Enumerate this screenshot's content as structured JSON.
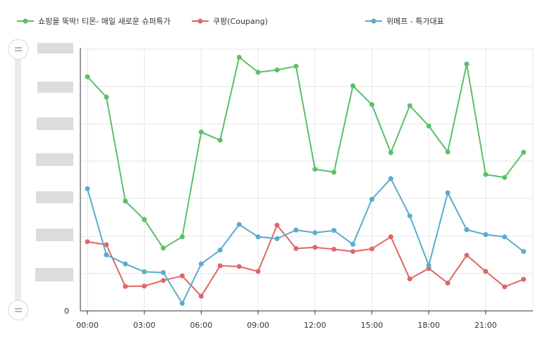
{
  "chart_data": {
    "type": "line",
    "x": [
      "00:00",
      "01:00",
      "02:00",
      "03:00",
      "04:00",
      "05:00",
      "06:00",
      "07:00",
      "08:00",
      "09:00",
      "10:00",
      "11:00",
      "12:00",
      "13:00",
      "14:00",
      "15:00",
      "16:00",
      "17:00",
      "18:00",
      "19:00",
      "20:00",
      "21:00",
      "22:00",
      "23:00"
    ],
    "xticks": [
      "00:00",
      "03:00",
      "06:00",
      "09:00",
      "12:00",
      "15:00",
      "18:00",
      "21:00"
    ],
    "yticks": [
      "0"
    ],
    "ylim": [
      0,
      700
    ],
    "grid": true,
    "legend_position": "top",
    "series": [
      {
        "name": "쇼핑을 뚝딱! 티몬- 매일 새로운 슈퍼특가",
        "color": "#5cbf6a",
        "values": [
          623,
          569,
          292,
          243,
          167,
          197,
          476,
          454,
          675,
          635,
          641,
          651,
          377,
          369,
          599,
          549,
          421,
          546,
          492,
          423,
          657,
          363,
          355,
          422
        ]
      },
      {
        "name": "쿠팡(Coupang)",
        "color": "#e06666",
        "values": [
          184,
          176,
          65,
          66,
          81,
          93,
          39,
          120,
          118,
          105,
          228,
          166,
          169,
          164,
          158,
          165,
          197,
          85,
          113,
          74,
          148,
          105,
          64,
          84
        ]
      },
      {
        "name": "위메프 - 특가대표",
        "color": "#5aaccc",
        "values": [
          325,
          149,
          125,
          104,
          102,
          20,
          125,
          162,
          230,
          197,
          192,
          215,
          208,
          214,
          177,
          297,
          352,
          253,
          121,
          314,
          216,
          203,
          197,
          158
        ]
      }
    ]
  },
  "scrollbar": {
    "handle_top_icon": "grip-icon",
    "handle_bottom_icon": "grip-icon"
  }
}
